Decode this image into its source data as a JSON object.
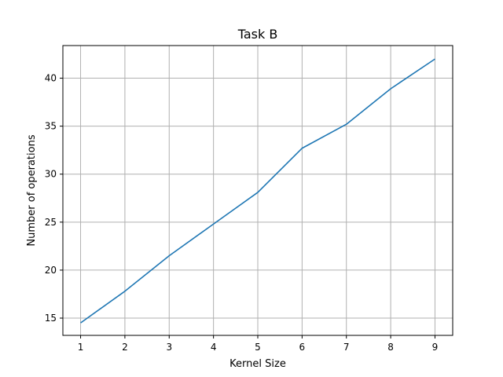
{
  "chart_data": {
    "type": "line",
    "title": "Task B",
    "xlabel": "Kernel Size",
    "ylabel": "Number of operations",
    "grid": true,
    "xlim": [
      0.6,
      9.4
    ],
    "ylim": [
      13.2,
      43.4
    ],
    "xticks": [
      1,
      2,
      3,
      4,
      5,
      6,
      7,
      8,
      9
    ],
    "yticks": [
      15,
      20,
      25,
      30,
      35,
      40
    ],
    "series": [
      {
        "color": "#1f77b4",
        "x": [
          1,
          2,
          3,
          4,
          5,
          6,
          7,
          8,
          9
        ],
        "y": [
          14.5,
          17.8,
          21.5,
          24.8,
          28.1,
          32.7,
          35.2,
          38.9,
          42.0
        ]
      }
    ]
  }
}
